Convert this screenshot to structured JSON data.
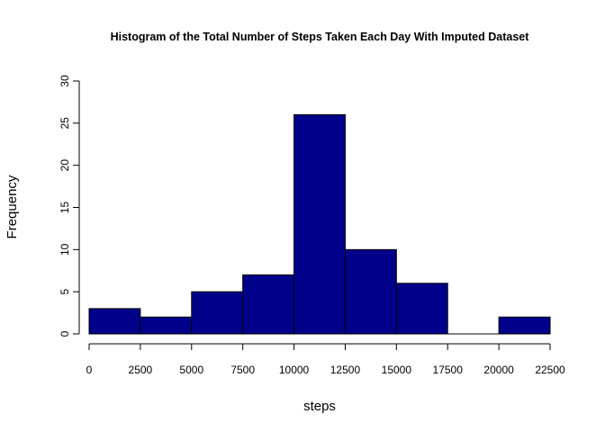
{
  "chart_data": {
    "type": "bar",
    "title": "Histogram of the Total Number of Steps Taken Each Day With Imputed Dataset",
    "xlabel": "steps",
    "ylabel": "Frequency",
    "bin_edges": [
      0,
      2500,
      5000,
      7500,
      10000,
      12500,
      15000,
      17500,
      20000,
      22500
    ],
    "values": [
      3,
      2,
      5,
      7,
      26,
      10,
      6,
      0,
      2
    ],
    "xlim": [
      0,
      22500
    ],
    "ylim": [
      0,
      30
    ],
    "x_ticks": [
      "0",
      "2500",
      "5000",
      "7500",
      "10000",
      "12500",
      "15000",
      "17500",
      "20000",
      "22500"
    ],
    "y_ticks": [
      "0",
      "5",
      "10",
      "15",
      "20",
      "25",
      "30"
    ],
    "bar_color": "#00008B",
    "grid": false,
    "legend": "none"
  }
}
